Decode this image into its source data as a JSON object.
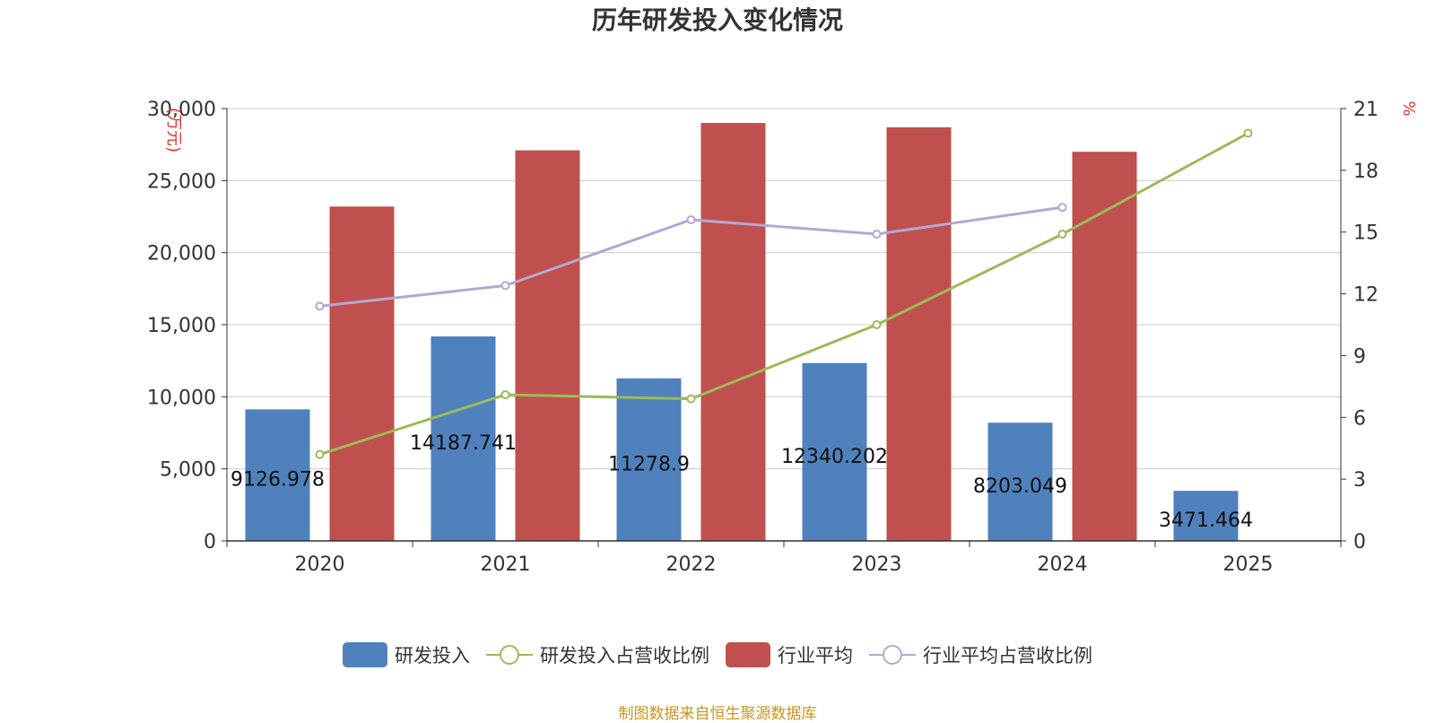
{
  "chart_data": {
    "type": "bar",
    "title": "历年研发投入变化情况",
    "categories": [
      "2020",
      "2021",
      "2022",
      "2023",
      "2024",
      "2025"
    ],
    "left_axis": {
      "unit_label": "(万元)",
      "ylim": [
        0,
        30000
      ],
      "ticks": [
        "0",
        "5,000",
        "10,000",
        "15,000",
        "20,000",
        "25,000",
        "30,000"
      ]
    },
    "right_axis": {
      "unit_label": "%",
      "ylim": [
        0,
        21
      ],
      "ticks": [
        "0",
        "3",
        "6",
        "9",
        "12",
        "15",
        "18",
        "21"
      ]
    },
    "series": [
      {
        "name": "研发投入",
        "kind": "bar",
        "axis": "left",
        "color": "#4f81bd",
        "values": [
          9126.978,
          14187.741,
          11278.9,
          12340.202,
          8203.049,
          3471.464
        ],
        "labels": [
          "9126.978",
          "14187.741",
          "11278.9",
          "12340.202",
          "8203.049",
          "3471.464"
        ]
      },
      {
        "name": "研发投入占营收比例",
        "kind": "line",
        "axis": "right",
        "color": "#9bbb59",
        "values": [
          4.2,
          7.1,
          6.9,
          10.5,
          14.9,
          19.8
        ]
      },
      {
        "name": "行业平均",
        "kind": "bar",
        "axis": "left",
        "color": "#c0504d",
        "values": [
          23200,
          27100,
          29000,
          28700,
          27000,
          null
        ]
      },
      {
        "name": "行业平均占营收比例",
        "kind": "line",
        "axis": "right",
        "color": "#b3a8d3",
        "values": [
          11.4,
          12.4,
          15.6,
          14.9,
          16.2,
          null
        ]
      }
    ],
    "grid": true,
    "legend_position": "bottom"
  },
  "source_note": "制图数据来自恒生聚源数据库"
}
